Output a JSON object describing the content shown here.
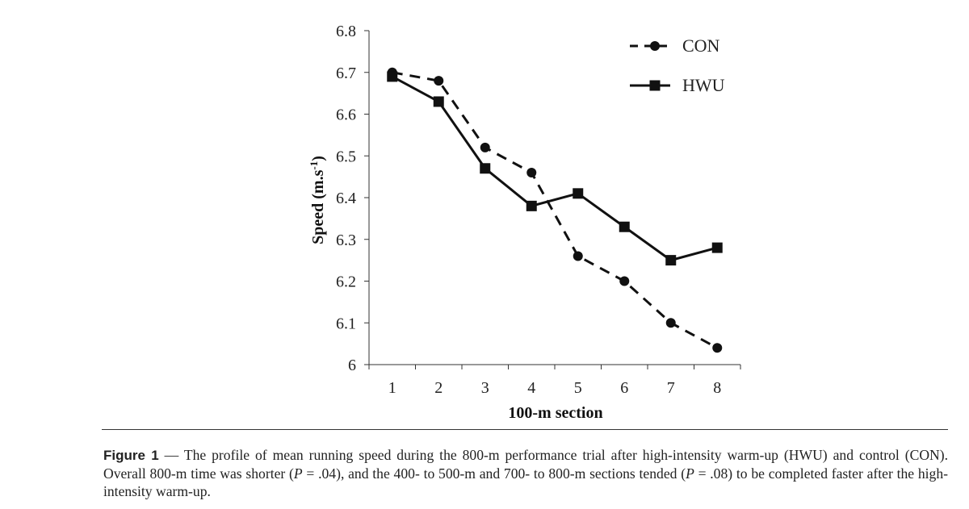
{
  "chart_data": {
    "type": "line",
    "xlabel": "100-m section",
    "ylabel": "Speed (m.s",
    "ylabel_sup": "-1",
    "ylabel_close": ")",
    "ylim": [
      6.0,
      6.8
    ],
    "xlim": [
      0.5,
      8.5
    ],
    "categories": [
      "1",
      "2",
      "3",
      "4",
      "5",
      "6",
      "7",
      "8"
    ],
    "x": [
      1,
      2,
      3,
      4,
      5,
      6,
      7,
      8
    ],
    "yticks": [
      "6",
      "6.1",
      "6.2",
      "6.3",
      "6.4",
      "6.5",
      "6.6",
      "6.7",
      "6.8"
    ],
    "ytick_values": [
      6.0,
      6.1,
      6.2,
      6.3,
      6.4,
      6.5,
      6.6,
      6.7,
      6.8
    ],
    "series": [
      {
        "name": "CON",
        "style": "dashed",
        "marker": "circle",
        "color": "#111111",
        "values": [
          6.7,
          6.68,
          6.52,
          6.46,
          6.26,
          6.2,
          6.1,
          6.04
        ]
      },
      {
        "name": "HWU",
        "style": "solid",
        "marker": "square",
        "color": "#111111",
        "values": [
          6.69,
          6.63,
          6.47,
          6.38,
          6.41,
          6.33,
          6.25,
          6.28
        ]
      }
    ],
    "legend_position": "top-right",
    "grid": false
  },
  "caption": {
    "label": "Figure 1",
    "text_1": " — The profile of mean running speed during the 800-m performance trial after high-intensity warm-up (HWU) and control (CON). Overall 800-m time was shorter (",
    "p_symbol_1": "P",
    "text_2": " = .04), and the 400- to 500-m and 700- to 800-m sections tended (",
    "p_symbol_2": "P",
    "text_3": " = .08) to be completed faster after the high-intensity warm-up."
  }
}
